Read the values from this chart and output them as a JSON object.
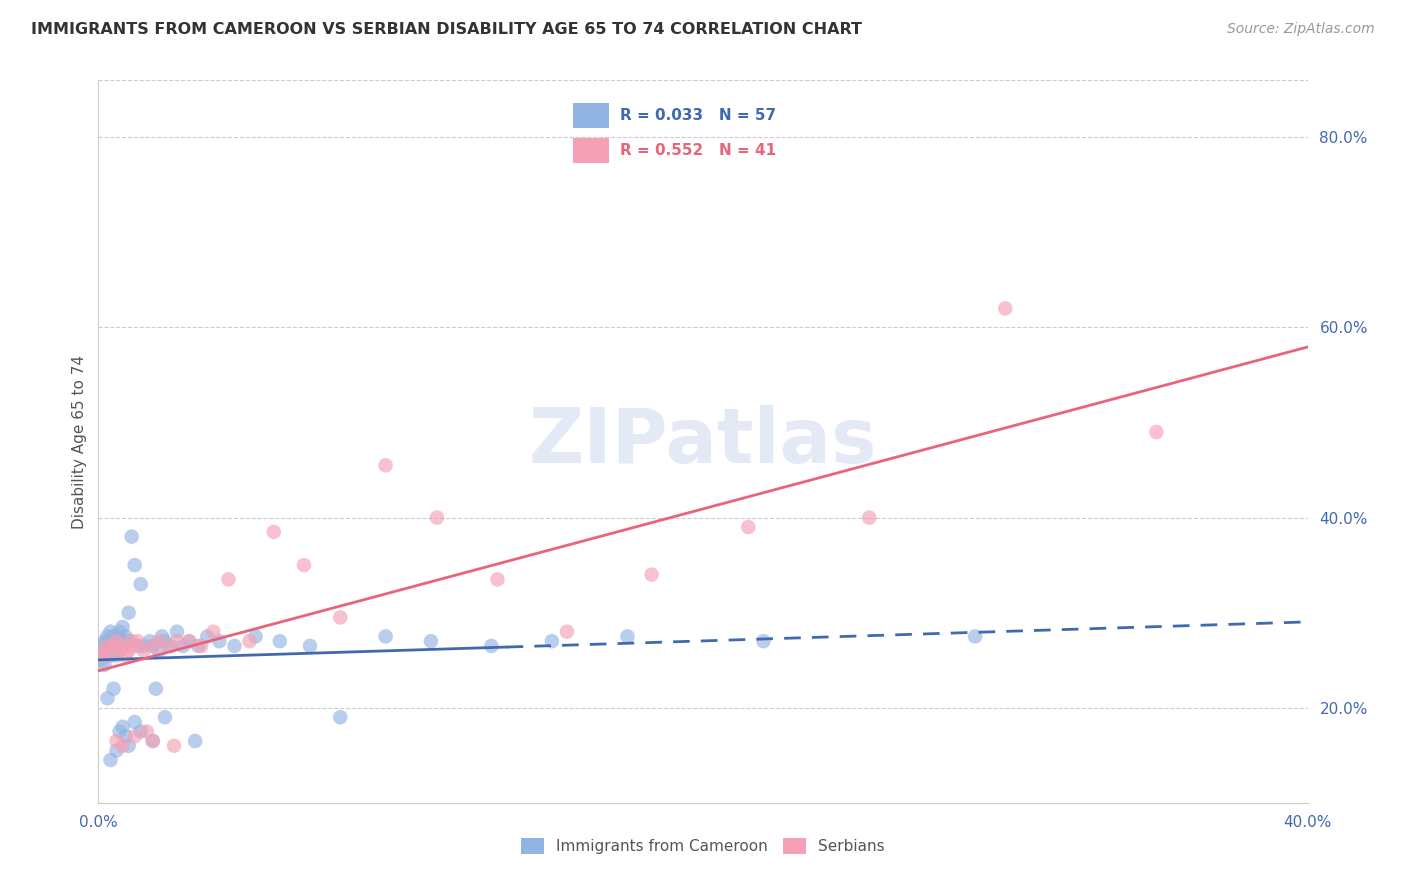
{
  "title": "IMMIGRANTS FROM CAMEROON VS SERBIAN DISABILITY AGE 65 TO 74 CORRELATION CHART",
  "source": "Source: ZipAtlas.com",
  "ylabel": "Disability Age 65 to 74",
  "xlim": [
    0.0,
    0.4
  ],
  "ylim": [
    0.1,
    0.86
  ],
  "xticks": [
    0.0,
    0.05,
    0.1,
    0.15,
    0.2,
    0.25,
    0.3,
    0.35,
    0.4
  ],
  "xtick_labels": [
    "0.0%",
    "",
    "",
    "",
    "",
    "",
    "",
    "",
    "40.0%"
  ],
  "yticks_right": [
    0.2,
    0.4,
    0.6,
    0.8
  ],
  "ytick_right_labels": [
    "20.0%",
    "40.0%",
    "60.0%",
    "80.0%"
  ],
  "cameroon_color": "#92b4e3",
  "serbian_color": "#f4a0b5",
  "cameroon_line_color": "#4169b0",
  "serbian_line_color": "#e8647a",
  "legend_label_cameroon": "Immigrants from Cameroon",
  "legend_label_serbian": "Serbians",
  "watermark": "ZIPatlas",
  "cameroon_x": [
    0.001,
    0.001,
    0.002,
    0.002,
    0.002,
    0.003,
    0.003,
    0.003,
    0.004,
    0.004,
    0.004,
    0.005,
    0.005,
    0.005,
    0.006,
    0.006,
    0.006,
    0.007,
    0.007,
    0.007,
    0.008,
    0.008,
    0.008,
    0.009,
    0.009,
    0.01,
    0.01,
    0.011,
    0.012,
    0.013,
    0.014,
    0.015,
    0.017,
    0.018,
    0.019,
    0.02,
    0.021,
    0.022,
    0.024,
    0.026,
    0.028,
    0.03,
    0.033,
    0.036,
    0.04,
    0.045,
    0.052,
    0.06,
    0.07,
    0.08,
    0.095,
    0.11,
    0.13,
    0.15,
    0.175,
    0.22,
    0.29
  ],
  "cameroon_y": [
    0.265,
    0.25,
    0.27,
    0.26,
    0.245,
    0.275,
    0.26,
    0.27,
    0.255,
    0.27,
    0.28,
    0.265,
    0.275,
    0.26,
    0.27,
    0.255,
    0.275,
    0.26,
    0.27,
    0.28,
    0.27,
    0.265,
    0.285,
    0.265,
    0.275,
    0.27,
    0.3,
    0.38,
    0.35,
    0.265,
    0.33,
    0.265,
    0.27,
    0.265,
    0.22,
    0.26,
    0.275,
    0.27,
    0.265,
    0.28,
    0.265,
    0.27,
    0.265,
    0.275,
    0.27,
    0.265,
    0.275,
    0.27,
    0.265,
    0.19,
    0.275,
    0.27,
    0.265,
    0.27,
    0.275,
    0.27,
    0.275
  ],
  "cameroon_y_low": [
    0.21,
    0.145,
    0.22,
    0.155,
    0.175,
    0.18,
    0.17,
    0.16,
    0.185,
    0.175,
    0.165,
    0.19,
    0.165
  ],
  "cameroon_x_low": [
    0.003,
    0.004,
    0.005,
    0.006,
    0.007,
    0.008,
    0.009,
    0.01,
    0.012,
    0.014,
    0.018,
    0.022,
    0.032
  ],
  "serbian_x": [
    0.001,
    0.002,
    0.003,
    0.004,
    0.005,
    0.006,
    0.007,
    0.008,
    0.009,
    0.01,
    0.011,
    0.012,
    0.013,
    0.015,
    0.016,
    0.018,
    0.02,
    0.023,
    0.026,
    0.03,
    0.034,
    0.038,
    0.043,
    0.05,
    0.058,
    0.068,
    0.08,
    0.095,
    0.112,
    0.132,
    0.155,
    0.183,
    0.215,
    0.255,
    0.3,
    0.35,
    0.006,
    0.008,
    0.012,
    0.018,
    0.025
  ],
  "serbian_y": [
    0.255,
    0.26,
    0.265,
    0.255,
    0.265,
    0.27,
    0.26,
    0.265,
    0.255,
    0.26,
    0.27,
    0.265,
    0.27,
    0.26,
    0.175,
    0.265,
    0.27,
    0.265,
    0.27,
    0.27,
    0.265,
    0.28,
    0.335,
    0.27,
    0.385,
    0.35,
    0.295,
    0.455,
    0.4,
    0.335,
    0.28,
    0.34,
    0.39,
    0.4,
    0.62,
    0.49,
    0.165,
    0.16,
    0.17,
    0.165,
    0.16
  ]
}
